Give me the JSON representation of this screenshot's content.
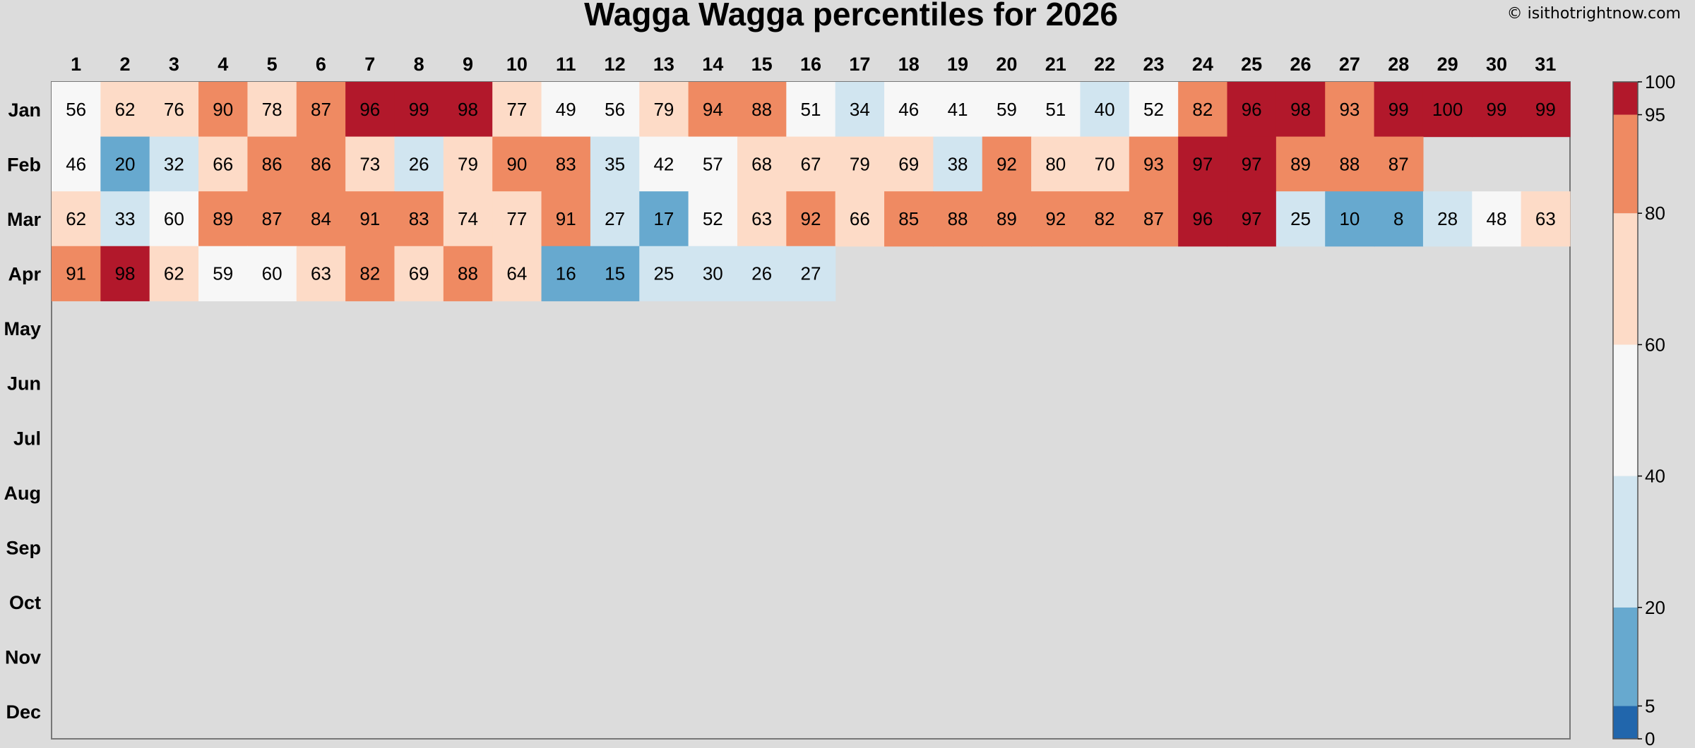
{
  "credit": "© isithotrightnow.com",
  "chart_data": {
    "type": "heatmap",
    "title": "Wagga Wagga percentiles for 2026",
    "days": [
      "1",
      "2",
      "3",
      "4",
      "5",
      "6",
      "7",
      "8",
      "9",
      "10",
      "11",
      "12",
      "13",
      "14",
      "15",
      "16",
      "17",
      "18",
      "19",
      "20",
      "21",
      "22",
      "23",
      "24",
      "25",
      "26",
      "27",
      "28",
      "29",
      "30",
      "31"
    ],
    "months": [
      "Jan",
      "Feb",
      "Mar",
      "Apr",
      "May",
      "Jun",
      "Jul",
      "Aug",
      "Sep",
      "Oct",
      "Nov",
      "Dec"
    ],
    "values": [
      [
        56,
        62,
        76,
        90,
        78,
        87,
        96,
        99,
        98,
        77,
        49,
        56,
        79,
        94,
        88,
        51,
        34,
        46,
        41,
        59,
        51,
        40,
        52,
        82,
        96,
        98,
        93,
        99,
        100,
        99,
        99
      ],
      [
        46,
        20,
        32,
        66,
        86,
        86,
        73,
        26,
        79,
        90,
        83,
        35,
        42,
        57,
        68,
        67,
        79,
        69,
        38,
        92,
        80,
        70,
        93,
        97,
        97,
        89,
        88,
        87
      ],
      [
        62,
        33,
        60,
        89,
        87,
        84,
        91,
        83,
        74,
        77,
        91,
        27,
        17,
        52,
        63,
        92,
        66,
        85,
        88,
        89,
        92,
        82,
        87,
        96,
        97,
        25,
        10,
        8,
        28,
        48,
        63
      ],
      [
        91,
        98,
        62,
        59,
        60,
        63,
        82,
        69,
        88,
        64,
        16,
        15,
        25,
        30,
        26,
        27
      ],
      [],
      [],
      [],
      [],
      [],
      [],
      [],
      []
    ],
    "color_scale": {
      "breaks": [
        0,
        5,
        20,
        40,
        60,
        80,
        95,
        100
      ],
      "colors": [
        "#2166ac",
        "#67a9cf",
        "#d1e5f0",
        "#f7f7f7",
        "#fddbc7",
        "#ef8a62",
        "#b2182b"
      ],
      "tick_labels": [
        "0",
        "5",
        "20",
        "40",
        "60",
        "80",
        "95",
        "100"
      ]
    },
    "legend": "right"
  }
}
